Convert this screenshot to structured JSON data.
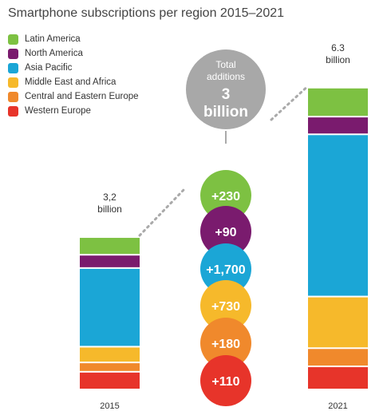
{
  "colors": {
    "Latin America": "#7dc142",
    "North America": "#7a1b6e",
    "Asia Pacific": "#1ba6d6",
    "Middle East and Africa": "#f6b92b",
    "Central and Eastern Europe": "#f0892c",
    "Western Europe": "#e7342a"
  },
  "chart_data": {
    "type": "bar",
    "title": "Smartphone subscriptions per region 2015–2021",
    "stacked": true,
    "unit": "billion",
    "categories": [
      "2015",
      "2021"
    ],
    "legend_placement": "top-left",
    "series": [
      {
        "name": "Western Europe",
        "values": [
          0.36,
          0.47
        ]
      },
      {
        "name": "Central and Eastern Europe",
        "values": [
          0.19,
          0.37
        ]
      },
      {
        "name": "Middle East and Africa",
        "values": [
          0.32,
          1.05
        ]
      },
      {
        "name": "Asia Pacific",
        "values": [
          1.6,
          3.3
        ]
      },
      {
        "name": "North America",
        "values": [
          0.27,
          0.36
        ]
      },
      {
        "name": "Latin America",
        "values": [
          0.36,
          0.59
        ]
      }
    ],
    "totals": [
      {
        "value": "3,2",
        "unit": "billion"
      },
      {
        "value": "6.3",
        "unit": "billion"
      }
    ],
    "total_additions": {
      "label": "Total additions",
      "value": "3",
      "unit": "billion"
    },
    "additions": [
      {
        "name": "Latin America",
        "label": "+230"
      },
      {
        "name": "North America",
        "label": "+90"
      },
      {
        "name": "Asia Pacific",
        "label": "+1,700"
      },
      {
        "name": "Middle East and Africa",
        "label": "+730"
      },
      {
        "name": "Central and Eastern Europe",
        "label": "+180"
      },
      {
        "name": "Western Europe",
        "label": "+110"
      }
    ]
  }
}
